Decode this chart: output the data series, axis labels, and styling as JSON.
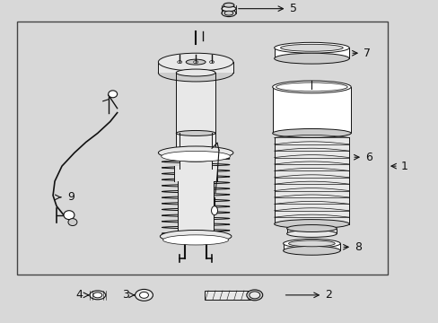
{
  "fig_width": 4.89,
  "fig_height": 3.6,
  "dpi": 100,
  "bg_color": "#d8d8d8",
  "box_bg": "#d8d8d8",
  "box_edge": "#444444",
  "line_color": "#111111",
  "fill_white": "#ffffff",
  "fill_light": "#e8e8e8",
  "fill_mid": "#cccccc",
  "fill_dark": "#aaaaaa"
}
